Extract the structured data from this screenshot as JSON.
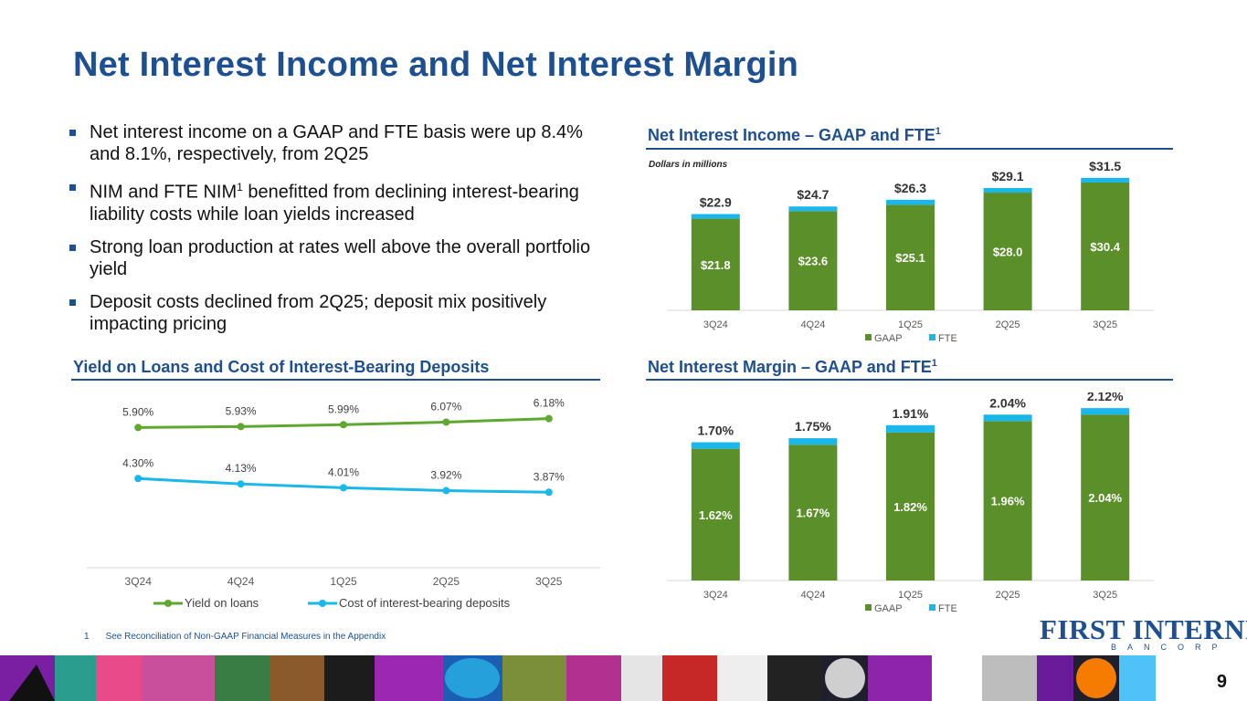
{
  "title": "Net Interest Income and Net Interest Margin",
  "bullets": [
    {
      "text": "Net interest income on a GAAP and FTE basis were up 8.4% and 8.1%, respectively, from 2Q25"
    },
    {
      "pre": "NIM and FTE NIM",
      "sup": "1",
      "post": " benefitted from declining interest-bearing liability costs while loan yields increased"
    },
    {
      "text": "Strong loan production at rates well above the overall portfolio yield"
    },
    {
      "text": "Deposit costs declined from 2Q25; deposit mix positively impacting pricing"
    }
  ],
  "sections": {
    "nii_title": "Net Interest Income – GAAP and FTE",
    "nii_sup": "1",
    "nii_note": "Dollars in millions",
    "yield_title": "Yield on Loans and Cost of Interest-Bearing Deposits",
    "nim_title": "Net Interest Margin – GAAP and FTE",
    "nim_sup": "1"
  },
  "colors": {
    "gaap": "#5a8f29",
    "fte": "#1ab7ea",
    "title": "#1d4f91",
    "yield": "#5ea830",
    "cost": "#1ab7ea"
  },
  "chart_data": [
    {
      "type": "bar",
      "stacked": true,
      "title": "Net Interest Income – GAAP and FTE",
      "ylabel": "Dollars in millions",
      "categories": [
        "3Q24",
        "4Q24",
        "1Q25",
        "2Q25",
        "3Q25"
      ],
      "series": [
        {
          "name": "GAAP",
          "values": [
            21.8,
            23.6,
            25.1,
            28.0,
            30.4
          ],
          "labels": [
            "$21.8",
            "$23.6",
            "$25.1",
            "$28.0",
            "$30.4"
          ]
        },
        {
          "name": "FTE",
          "values": [
            1.1,
            1.1,
            1.2,
            1.1,
            1.1
          ]
        }
      ],
      "totals": [
        "$22.9",
        "$24.7",
        "$26.3",
        "$29.1",
        "$31.5"
      ],
      "total_values": [
        22.9,
        24.7,
        26.3,
        29.1,
        31.5
      ],
      "legend": [
        "GAAP",
        "FTE"
      ],
      "ylim": [
        0,
        33
      ]
    },
    {
      "type": "line",
      "title": "Yield on Loans and Cost of Interest-Bearing Deposits",
      "categories": [
        "3Q24",
        "4Q24",
        "1Q25",
        "2Q25",
        "3Q25"
      ],
      "series": [
        {
          "name": "Yield on loans",
          "values": [
            5.9,
            5.93,
            5.99,
            6.07,
            6.18
          ],
          "labels": [
            "5.90%",
            "5.93%",
            "5.99%",
            "6.07%",
            "6.18%"
          ]
        },
        {
          "name": "Cost of interest-bearing deposits",
          "values": [
            4.3,
            4.13,
            4.01,
            3.92,
            3.87
          ],
          "labels": [
            "4.30%",
            "4.13%",
            "4.01%",
            "3.92%",
            "3.87%"
          ]
        }
      ],
      "legend": [
        "Yield on loans",
        "Cost of interest-bearing deposits"
      ],
      "ylim": [
        1.5,
        7
      ]
    },
    {
      "type": "bar",
      "stacked": true,
      "title": "Net Interest Margin – GAAP and FTE",
      "categories": [
        "3Q24",
        "4Q24",
        "1Q25",
        "2Q25",
        "3Q25"
      ],
      "series": [
        {
          "name": "GAAP",
          "values": [
            1.62,
            1.67,
            1.82,
            1.96,
            2.04
          ],
          "labels": [
            "1.62%",
            "1.67%",
            "1.82%",
            "1.96%",
            "2.04%"
          ]
        },
        {
          "name": "FTE",
          "values": [
            0.08,
            0.08,
            0.09,
            0.08,
            0.08
          ]
        }
      ],
      "totals": [
        "1.70%",
        "1.75%",
        "1.91%",
        "2.04%",
        "2.12%"
      ],
      "total_values": [
        1.7,
        1.75,
        1.91,
        2.04,
        2.12
      ],
      "legend": [
        "GAAP",
        "FTE"
      ],
      "ylim": [
        0,
        2.2
      ]
    }
  ],
  "footnote": {
    "num": "1",
    "text": "See Reconciliation of Non-GAAP Financial Measures in the Appendix"
  },
  "logo": {
    "line1": "FIRST INTERNET",
    "line2": "BANCORP"
  },
  "page_number": "9"
}
